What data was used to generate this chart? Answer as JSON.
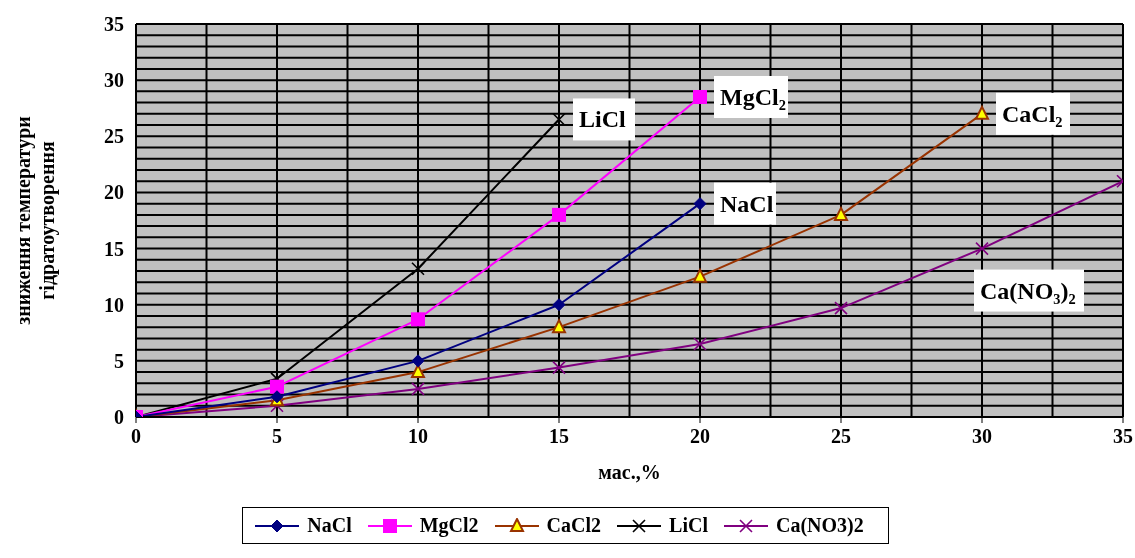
{
  "chart_data": {
    "type": "line",
    "xlabel": "мас.,%",
    "ylabel": "зниження температури\nгідратоутворення",
    "xlim": [
      0,
      35
    ],
    "xticks": [
      0,
      {
        "value": 2.5,
        "label": null
      },
      5,
      {
        "value": 7.5,
        "label": null
      },
      10,
      {
        "value": 12.5,
        "label": null
      },
      15,
      {
        "value": 17.5,
        "label": null
      },
      20,
      {
        "value": 22.5,
        "label": null
      },
      25,
      {
        "value": 27.5,
        "label": null
      },
      30,
      {
        "value": 32.5,
        "label": null
      },
      35
    ],
    "ylim": [
      0,
      35
    ],
    "yticks": [
      0,
      {
        "value": 1,
        "label": null
      },
      {
        "value": 2,
        "label": null
      },
      {
        "value": 3,
        "label": null
      },
      {
        "value": 4,
        "label": null
      },
      5,
      {
        "value": 6,
        "label": null
      },
      {
        "value": 7,
        "label": null
      },
      {
        "value": 8,
        "label": null
      },
      {
        "value": 9,
        "label": null
      },
      10,
      {
        "value": 11,
        "label": null
      },
      {
        "value": 12,
        "label": null
      },
      {
        "value": 13,
        "label": null
      },
      {
        "value": 14,
        "label": null
      },
      15,
      {
        "value": 16,
        "label": null
      },
      {
        "value": 17,
        "label": null
      },
      {
        "value": 18,
        "label": null
      },
      {
        "value": 19,
        "label": null
      },
      20,
      {
        "value": 21,
        "label": null
      },
      {
        "value": 22,
        "label": null
      },
      {
        "value": 23,
        "label": null
      },
      {
        "value": 24,
        "label": null
      },
      25,
      {
        "value": 26,
        "label": null
      },
      {
        "value": 27,
        "label": null
      },
      {
        "value": 28,
        "label": null
      },
      {
        "value": 29,
        "label": null
      },
      30,
      {
        "value": 31,
        "label": null
      },
      {
        "value": 32,
        "label": null
      },
      {
        "value": 33,
        "label": null
      },
      {
        "value": 34,
        "label": null
      },
      35
    ],
    "grid": true,
    "legend": "bottom",
    "line_style": "solid",
    "series": [
      {
        "name": "NaCl",
        "color": "#000080",
        "marker": "diamond",
        "x": [
          0,
          5,
          10,
          15,
          20
        ],
        "values": [
          0,
          1.8,
          5,
          10,
          19
        ]
      },
      {
        "name": "MgCl2",
        "color": "#ff00ff",
        "marker": "square",
        "x": [
          0,
          5,
          10,
          15,
          20
        ],
        "values": [
          0,
          2.7,
          8.7,
          18,
          28.5
        ]
      },
      {
        "name": "CaCl2",
        "color": "#993300",
        "marker": "triangle",
        "x": [
          0,
          5,
          10,
          15,
          20,
          25,
          30
        ],
        "values": [
          0,
          1.5,
          4,
          8,
          12.5,
          18,
          27
        ]
      },
      {
        "name": "LiCl",
        "color": "#000000",
        "marker": "cross",
        "x": [
          0,
          5,
          10,
          15
        ],
        "values": [
          0,
          3.4,
          13.2,
          26.5
        ]
      },
      {
        "name": "Ca(NO3)2",
        "color": "#800080",
        "marker": "cross",
        "x": [
          0,
          5,
          10,
          15,
          20,
          25,
          30,
          35
        ],
        "values": [
          0,
          1,
          2.5,
          4.4,
          6.5,
          9.7,
          15,
          21
        ]
      }
    ],
    "annotations": [
      {
        "text": "LiCl",
        "x": 15,
        "y": 26.5
      },
      {
        "text": "MgCl₂",
        "x": 20,
        "y": 28.5
      },
      {
        "text": "NaCl",
        "x": 20,
        "y": 19
      },
      {
        "text": "CaCl₂",
        "x": 30,
        "y": 27
      },
      {
        "text": "Ca(NO₃)₂",
        "x": 30,
        "y": 15
      }
    ]
  }
}
